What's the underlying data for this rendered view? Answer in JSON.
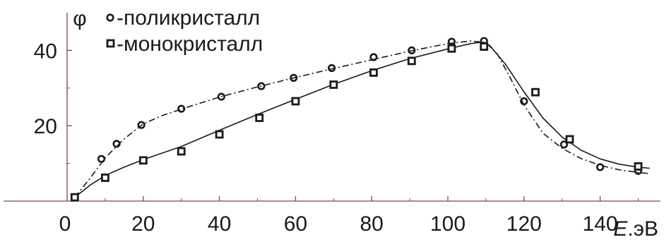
{
  "chart_data": {
    "type": "scatter",
    "ylabel": "φ",
    "xlabel_italic": "E",
    "xlabel_unit": ".эВ",
    "xlim": [
      0,
      155
    ],
    "ylim": [
      0,
      50
    ],
    "x_ticks": [
      20,
      40,
      60,
      80,
      100,
      120,
      140
    ],
    "y_ticks": [
      20,
      40
    ],
    "origin_label": "0",
    "legend_placement": "top-left",
    "grid": false,
    "series": [
      {
        "name": "-поликристалл",
        "marker": "circle",
        "line_style": "dashed",
        "color": "#1a1a1a",
        "points": [
          {
            "x": 2,
            "y": 1
          },
          {
            "x": 9,
            "y": 11.2
          },
          {
            "x": 13,
            "y": 15.2
          },
          {
            "x": 19.5,
            "y": 20.2
          },
          {
            "x": 30,
            "y": 24.5
          },
          {
            "x": 40.5,
            "y": 27.7
          },
          {
            "x": 51,
            "y": 30.5
          },
          {
            "x": 59.5,
            "y": 32.7
          },
          {
            "x": 69.5,
            "y": 35.3
          },
          {
            "x": 80.5,
            "y": 38.2
          },
          {
            "x": 90.5,
            "y": 40
          },
          {
            "x": 101,
            "y": 42.3
          },
          {
            "x": 109.5,
            "y": 42.5
          },
          {
            "x": 120,
            "y": 26.5
          },
          {
            "x": 130.5,
            "y": 15
          },
          {
            "x": 140,
            "y": 9
          },
          {
            "x": 150,
            "y": 8
          }
        ],
        "curve": [
          [
            2,
            1
          ],
          [
            6,
            6
          ],
          [
            10,
            11.5
          ],
          [
            15,
            16.5
          ],
          [
            20,
            20.5
          ],
          [
            25,
            22.7
          ],
          [
            30,
            24.4
          ],
          [
            40,
            27.6
          ],
          [
            50,
            30.3
          ],
          [
            60,
            32.8
          ],
          [
            70,
            35.2
          ],
          [
            80,
            37.5
          ],
          [
            90,
            39.8
          ],
          [
            100,
            41.8
          ],
          [
            106,
            42.5
          ],
          [
            110,
            42.1
          ],
          [
            113,
            39
          ],
          [
            116,
            33.5
          ],
          [
            120,
            25.5
          ],
          [
            125,
            18
          ],
          [
            130,
            14
          ],
          [
            135,
            11.3
          ],
          [
            140,
            9.5
          ],
          [
            145,
            8.3
          ],
          [
            150,
            7.6
          ],
          [
            153,
            7.3
          ]
        ]
      },
      {
        "name": "-монокристалл",
        "marker": "square",
        "line_style": "solid",
        "color": "#1a1a1a",
        "points": [
          {
            "x": 2,
            "y": 1
          },
          {
            "x": 10,
            "y": 6.2
          },
          {
            "x": 20,
            "y": 10.8
          },
          {
            "x": 30,
            "y": 13.2
          },
          {
            "x": 40,
            "y": 17.7
          },
          {
            "x": 50.5,
            "y": 22.1
          },
          {
            "x": 60,
            "y": 26.5
          },
          {
            "x": 70,
            "y": 30.9
          },
          {
            "x": 80.5,
            "y": 34.1
          },
          {
            "x": 90.5,
            "y": 37.2
          },
          {
            "x": 101,
            "y": 40.5
          },
          {
            "x": 109.5,
            "y": 41
          },
          {
            "x": 123,
            "y": 28.9
          },
          {
            "x": 132,
            "y": 16.4
          },
          {
            "x": 150,
            "y": 9.2
          }
        ],
        "curve": [
          [
            2,
            1
          ],
          [
            6,
            4.2
          ],
          [
            10,
            6.8
          ],
          [
            15,
            9
          ],
          [
            20,
            11
          ],
          [
            30,
            14.5
          ],
          [
            40,
            18.8
          ],
          [
            50,
            23
          ],
          [
            60,
            27
          ],
          [
            70,
            31
          ],
          [
            80,
            34.6
          ],
          [
            90,
            37.8
          ],
          [
            100,
            40.4
          ],
          [
            106,
            41.8
          ],
          [
            109,
            42.2
          ],
          [
            111,
            41.3
          ],
          [
            115,
            36.5
          ],
          [
            120,
            29
          ],
          [
            125,
            22
          ],
          [
            130,
            17
          ],
          [
            135,
            13.5
          ],
          [
            140,
            11.2
          ],
          [
            145,
            9.8
          ],
          [
            150,
            9
          ],
          [
            153,
            8.7
          ]
        ]
      }
    ]
  }
}
